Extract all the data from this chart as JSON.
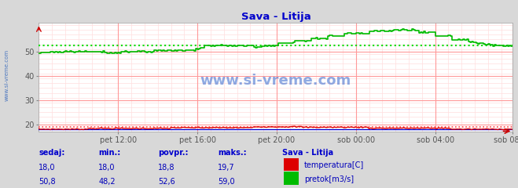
{
  "title": "Sava - Litija",
  "title_color": "#0000cc",
  "bg_color": "#d8d8d8",
  "plot_bg_color": "#ffffff",
  "grid_color": "#ff9999",
  "grid_minor_color": "#ffdddd",
  "xlim": [
    0,
    287
  ],
  "ylim": [
    17,
    62
  ],
  "yticks": [
    20,
    30,
    40,
    50
  ],
  "xtick_labels": [
    "pet 12:00",
    "pet 16:00",
    "pet 20:00",
    "sob 00:00",
    "sob 04:00",
    "sob 08:00"
  ],
  "xtick_positions": [
    48,
    96,
    144,
    192,
    240,
    287
  ],
  "tick_color": "#555555",
  "temp_color": "#dd0000",
  "flow_color": "#00bb00",
  "temp_avg_color": "#ff4444",
  "flow_avg_color": "#00dd00",
  "blue_line_color": "#0000cc",
  "watermark": "www.si-vreme.com",
  "watermark_color": "#3366cc",
  "sidebar_text": "www.si-vreme.com",
  "sidebar_color": "#3366bb",
  "table_header_color": "#0000cc",
  "table_value_color": "#0000bb",
  "temp_min": 18.0,
  "temp_avg": 18.8,
  "temp_max": 19.7,
  "temp_now": 18.0,
  "flow_min": 48.2,
  "flow_avg": 52.6,
  "flow_max": 59.0,
  "flow_now": 50.8,
  "arrow_color": "#cc0000"
}
